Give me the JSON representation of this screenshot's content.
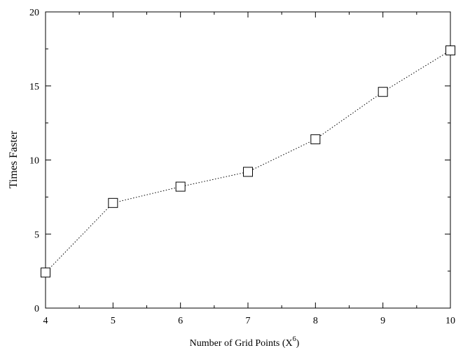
{
  "chart_data": {
    "type": "line",
    "title": "",
    "xlabel_prefix": "Number of Grid Points (X",
    "xlabel_exponent": "6",
    "xlabel_suffix": ")",
    "ylabel": "Times Faster",
    "x": [
      4,
      5,
      6,
      7,
      8,
      9,
      10
    ],
    "y": [
      2.4,
      7.1,
      8.2,
      9.2,
      11.4,
      14.6,
      17.4
    ],
    "xlim": [
      4,
      10
    ],
    "ylim": [
      0,
      20
    ],
    "xticks": [
      "4",
      "5",
      "6",
      "7",
      "8",
      "9",
      "10"
    ],
    "yticks": [
      "0",
      "5",
      "10",
      "15",
      "20"
    ],
    "marker": "square-open",
    "line_style": "dotted",
    "grid": false,
    "legend": "none"
  }
}
